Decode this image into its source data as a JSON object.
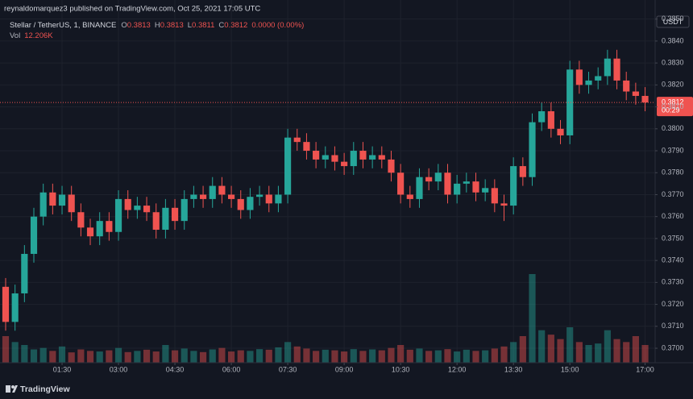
{
  "header": {
    "published": "reynaldomarquez3 published on TradingView.com, Oct 25, 2021 17:05 UTC"
  },
  "chart_data": {
    "type": "candlestick",
    "symbol": "Stellar / TetherUS, 1, BINANCE",
    "ohlc_legend": {
      "o_label": "O",
      "o": 0.3813,
      "h_label": "H",
      "h": 0.3813,
      "l_label": "L",
      "l": 0.3811,
      "c_label": "C",
      "c": 0.3812,
      "change": "0.0000 (0.00%)"
    },
    "volume_label": "Vol",
    "volume_value": "12.206K",
    "currency": "USDT",
    "last_price": 0.3812,
    "countdown": "00:29",
    "x": [
      0,
      15,
      30,
      45,
      60,
      75,
      90,
      105,
      120,
      135,
      150,
      165,
      180,
      195,
      210,
      225,
      240,
      255,
      270,
      285,
      300,
      315,
      330,
      345,
      360,
      375,
      390,
      405,
      420,
      435,
      450,
      465,
      480,
      495,
      510,
      525,
      540,
      555,
      570,
      585,
      600,
      615,
      630,
      645,
      660,
      675,
      690,
      705,
      720,
      735,
      750,
      765,
      780,
      795,
      810,
      825,
      840,
      855,
      870,
      885,
      900,
      915,
      930,
      945,
      960,
      975,
      990,
      1005,
      1020
    ],
    "open": [
      0.3728,
      0.3712,
      0.3725,
      0.3743,
      0.376,
      0.3771,
      0.3765,
      0.377,
      0.3762,
      0.3755,
      0.3751,
      0.3758,
      0.3753,
      0.3768,
      0.3763,
      0.3765,
      0.3762,
      0.3754,
      0.3764,
      0.3758,
      0.3768,
      0.377,
      0.3768,
      0.3774,
      0.377,
      0.3768,
      0.3763,
      0.3769,
      0.377,
      0.3766,
      0.377,
      0.3796,
      0.3794,
      0.379,
      0.3786,
      0.3788,
      0.3785,
      0.3783,
      0.379,
      0.3786,
      0.3788,
      0.3786,
      0.378,
      0.377,
      0.3768,
      0.3778,
      0.3776,
      0.378,
      0.377,
      0.3775,
      0.3776,
      0.3771,
      0.3773,
      0.3766,
      0.3765,
      0.3783,
      0.3778,
      0.3803,
      0.3808,
      0.38,
      0.3797,
      0.3827,
      0.382,
      0.3822,
      0.3824,
      0.3832,
      0.3822,
      0.3817,
      0.3815
    ],
    "high": [
      0.3732,
      0.3729,
      0.3747,
      0.3764,
      0.3775,
      0.3775,
      0.3774,
      0.3774,
      0.3766,
      0.3759,
      0.3762,
      0.3762,
      0.3772,
      0.3772,
      0.3769,
      0.3769,
      0.3766,
      0.3768,
      0.3768,
      0.3772,
      0.3774,
      0.3774,
      0.3778,
      0.3778,
      0.3774,
      0.3772,
      0.3773,
      0.3774,
      0.3774,
      0.3774,
      0.38,
      0.38,
      0.3798,
      0.3794,
      0.3792,
      0.3792,
      0.3789,
      0.3794,
      0.3794,
      0.3792,
      0.3792,
      0.379,
      0.3784,
      0.3774,
      0.3782,
      0.3782,
      0.3784,
      0.3784,
      0.3779,
      0.378,
      0.378,
      0.3777,
      0.3777,
      0.377,
      0.3787,
      0.3787,
      0.3807,
      0.3812,
      0.3812,
      0.3804,
      0.3831,
      0.3831,
      0.3826,
      0.3828,
      0.3836,
      0.3836,
      0.3826,
      0.3821,
      0.3819
    ],
    "low": [
      0.3708,
      0.3708,
      0.3721,
      0.3739,
      0.3756,
      0.3761,
      0.3761,
      0.3758,
      0.3751,
      0.3747,
      0.3747,
      0.3749,
      0.3749,
      0.3759,
      0.3759,
      0.3758,
      0.375,
      0.375,
      0.3754,
      0.3754,
      0.3764,
      0.3764,
      0.3764,
      0.3766,
      0.3764,
      0.3759,
      0.3759,
      0.3765,
      0.3762,
      0.3762,
      0.3766,
      0.379,
      0.3786,
      0.3782,
      0.3782,
      0.3781,
      0.3779,
      0.3779,
      0.3782,
      0.3782,
      0.3782,
      0.3776,
      0.3766,
      0.3764,
      0.3764,
      0.3772,
      0.3772,
      0.3766,
      0.3766,
      0.3771,
      0.3767,
      0.3767,
      0.3762,
      0.3758,
      0.3761,
      0.3774,
      0.3774,
      0.3799,
      0.3796,
      0.3793,
      0.3793,
      0.3816,
      0.3816,
      0.3818,
      0.382,
      0.3818,
      0.3813,
      0.3811,
      0.3808
    ],
    "close": [
      0.3712,
      0.3725,
      0.3743,
      0.376,
      0.3771,
      0.3765,
      0.377,
      0.3762,
      0.3755,
      0.3751,
      0.3758,
      0.3753,
      0.3768,
      0.3763,
      0.3765,
      0.3762,
      0.3754,
      0.3764,
      0.3758,
      0.3768,
      0.377,
      0.3768,
      0.3774,
      0.377,
      0.3768,
      0.3763,
      0.3769,
      0.377,
      0.3766,
      0.377,
      0.3796,
      0.3794,
      0.379,
      0.3786,
      0.3788,
      0.3785,
      0.3783,
      0.379,
      0.3786,
      0.3788,
      0.3786,
      0.378,
      0.377,
      0.3768,
      0.3778,
      0.3776,
      0.378,
      0.377,
      0.3775,
      0.3776,
      0.3771,
      0.3773,
      0.3766,
      0.3765,
      0.3783,
      0.3778,
      0.3803,
      0.3808,
      0.38,
      0.3797,
      0.3827,
      0.382,
      0.3822,
      0.3824,
      0.3832,
      0.3822,
      0.3817,
      0.3815,
      0.3812
    ],
    "volume": [
      90,
      70,
      60,
      45,
      50,
      40,
      55,
      35,
      45,
      40,
      38,
      42,
      50,
      36,
      40,
      44,
      38,
      60,
      42,
      48,
      40,
      36,
      45,
      50,
      38,
      42,
      40,
      46,
      44,
      52,
      70,
      55,
      48,
      40,
      44,
      42,
      38,
      46,
      40,
      45,
      42,
      50,
      60,
      44,
      48,
      40,
      42,
      46,
      38,
      44,
      40,
      42,
      48,
      55,
      70,
      90,
      300,
      110,
      95,
      80,
      120,
      70,
      60,
      65,
      110,
      80,
      70,
      90,
      60
    ],
    "up_color": "#26a69a",
    "down_color": "#ef5350",
    "xlim": [
      -9,
      1036
    ],
    "xticks": [
      {
        "value": 90,
        "label": "01:30"
      },
      {
        "value": 180,
        "label": "03:00"
      },
      {
        "value": 270,
        "label": "04:30"
      },
      {
        "value": 360,
        "label": "06:00"
      },
      {
        "value": 450,
        "label": "07:30"
      },
      {
        "value": 540,
        "label": "09:00"
      },
      {
        "value": 630,
        "label": "10:30"
      },
      {
        "value": 720,
        "label": "12:00"
      },
      {
        "value": 810,
        "label": "13:30"
      },
      {
        "value": 900,
        "label": "15:00"
      },
      {
        "value": 1020,
        "label": "17:00"
      }
    ],
    "ylim": [
      0.36934,
      0.38587
    ],
    "yticks": [
      {
        "value": 0.37,
        "label": "0.3700"
      },
      {
        "value": 0.371,
        "label": "0.3710"
      },
      {
        "value": 0.372,
        "label": "0.3720"
      },
      {
        "value": 0.373,
        "label": "0.3730"
      },
      {
        "value": 0.374,
        "label": "0.3740"
      },
      {
        "value": 0.375,
        "label": "0.3750"
      },
      {
        "value": 0.376,
        "label": "0.3760"
      },
      {
        "value": 0.377,
        "label": "0.3770"
      },
      {
        "value": 0.378,
        "label": "0.3780"
      },
      {
        "value": 0.379,
        "label": "0.3790"
      },
      {
        "value": 0.38,
        "label": "0.3800"
      },
      {
        "value": 0.381,
        "label": "0.3810"
      },
      {
        "value": 0.382,
        "label": "0.3820"
      },
      {
        "value": 0.383,
        "label": "0.3830"
      },
      {
        "value": 0.384,
        "label": "0.3840"
      },
      {
        "value": 0.385,
        "label": "0.3850"
      }
    ],
    "grid": true
  },
  "footer": {
    "brand": "TradingView"
  }
}
